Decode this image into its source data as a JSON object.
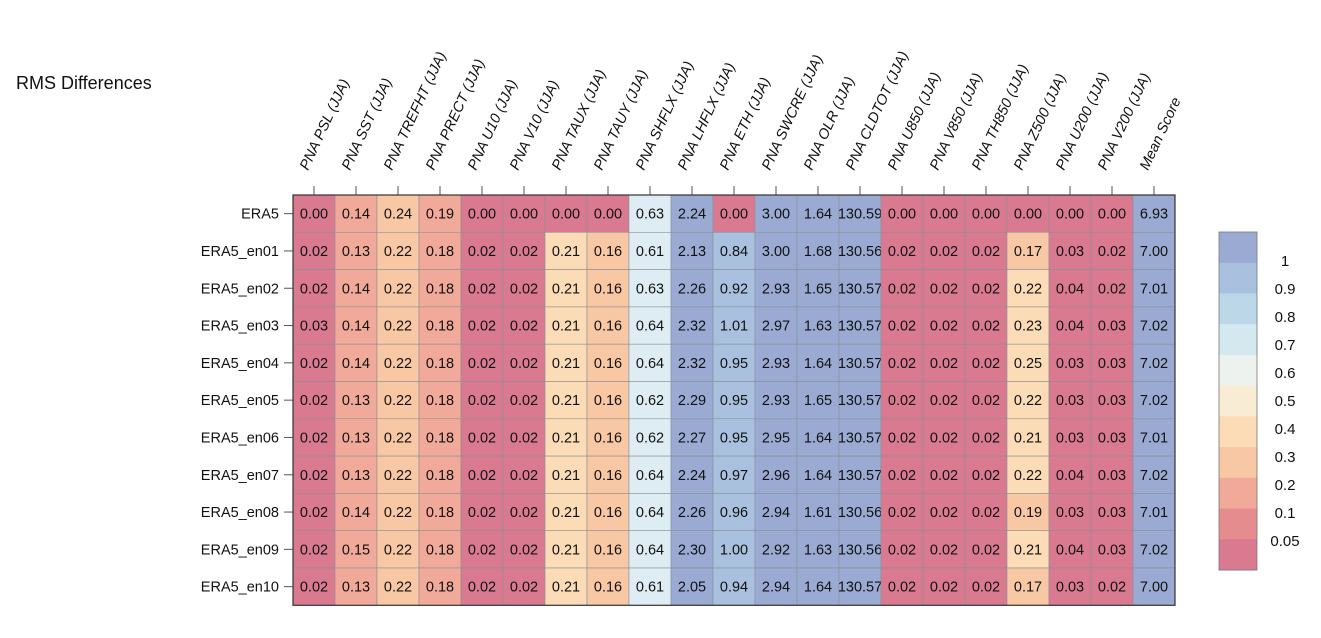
{
  "chart_data": {
    "type": "heatmap",
    "title": "RMS Differences",
    "columns": [
      "PNA PSL (JJA)",
      "PNA SST (JJA)",
      "PNA TREFHT (JJA)",
      "PNA PRECT (JJA)",
      "PNA U10 (JJA)",
      "PNA V10 (JJA)",
      "PNA TAUX (JJA)",
      "PNA TAUY (JJA)",
      "PNA SHFLX (JJA)",
      "PNA LHFLX (JJA)",
      "PNA ETH (JJA)",
      "PNA SWCRE (JJA)",
      "PNA OLR (JJA)",
      "PNA CLDTOT (JJA)",
      "PNA U850 (JJA)",
      "PNA V850 (JJA)",
      "PNA TH850 (JJA)",
      "PNA Z500 (JJA)",
      "PNA U200 (JJA)",
      "PNA V200 (JJA)",
      "Mean Score"
    ],
    "rows": [
      "ERA5",
      "ERA5_en01",
      "ERA5_en02",
      "ERA5_en03",
      "ERA5_en04",
      "ERA5_en05",
      "ERA5_en06",
      "ERA5_en07",
      "ERA5_en08",
      "ERA5_en09",
      "ERA5_en10"
    ],
    "values": [
      [
        "0.00",
        "0.14",
        "0.24",
        "0.19",
        "0.00",
        "0.00",
        "0.00",
        "0.00",
        "0.63",
        "2.24",
        "0.00",
        "3.00",
        "1.64",
        "130.59",
        "0.00",
        "0.00",
        "0.00",
        "0.00",
        "0.00",
        "0.00",
        "6.93"
      ],
      [
        "0.02",
        "0.13",
        "0.22",
        "0.18",
        "0.02",
        "0.02",
        "0.21",
        "0.16",
        "0.61",
        "2.13",
        "0.84",
        "3.00",
        "1.68",
        "130.56",
        "0.02",
        "0.02",
        "0.02",
        "0.17",
        "0.03",
        "0.02",
        "7.00"
      ],
      [
        "0.02",
        "0.14",
        "0.22",
        "0.18",
        "0.02",
        "0.02",
        "0.21",
        "0.16",
        "0.63",
        "2.26",
        "0.92",
        "2.93",
        "1.65",
        "130.57",
        "0.02",
        "0.02",
        "0.02",
        "0.22",
        "0.04",
        "0.02",
        "7.01"
      ],
      [
        "0.03",
        "0.14",
        "0.22",
        "0.18",
        "0.02",
        "0.02",
        "0.21",
        "0.16",
        "0.64",
        "2.32",
        "1.01",
        "2.97",
        "1.63",
        "130.57",
        "0.02",
        "0.02",
        "0.02",
        "0.23",
        "0.04",
        "0.03",
        "7.02"
      ],
      [
        "0.02",
        "0.14",
        "0.22",
        "0.18",
        "0.02",
        "0.02",
        "0.21",
        "0.16",
        "0.64",
        "2.32",
        "0.95",
        "2.93",
        "1.64",
        "130.57",
        "0.02",
        "0.02",
        "0.02",
        "0.25",
        "0.03",
        "0.03",
        "7.02"
      ],
      [
        "0.02",
        "0.13",
        "0.22",
        "0.18",
        "0.02",
        "0.02",
        "0.21",
        "0.16",
        "0.62",
        "2.29",
        "0.95",
        "2.93",
        "1.65",
        "130.57",
        "0.02",
        "0.02",
        "0.02",
        "0.22",
        "0.03",
        "0.03",
        "7.02"
      ],
      [
        "0.02",
        "0.13",
        "0.22",
        "0.18",
        "0.02",
        "0.02",
        "0.21",
        "0.16",
        "0.62",
        "2.27",
        "0.95",
        "2.95",
        "1.64",
        "130.57",
        "0.02",
        "0.02",
        "0.02",
        "0.21",
        "0.03",
        "0.03",
        "7.01"
      ],
      [
        "0.02",
        "0.13",
        "0.22",
        "0.18",
        "0.02",
        "0.02",
        "0.21",
        "0.16",
        "0.64",
        "2.24",
        "0.97",
        "2.96",
        "1.64",
        "130.57",
        "0.02",
        "0.02",
        "0.02",
        "0.22",
        "0.04",
        "0.03",
        "7.02"
      ],
      [
        "0.02",
        "0.14",
        "0.22",
        "0.18",
        "0.02",
        "0.02",
        "0.21",
        "0.16",
        "0.64",
        "2.26",
        "0.96",
        "2.94",
        "1.61",
        "130.56",
        "0.02",
        "0.02",
        "0.02",
        "0.19",
        "0.03",
        "0.03",
        "7.01"
      ],
      [
        "0.02",
        "0.15",
        "0.22",
        "0.18",
        "0.02",
        "0.02",
        "0.21",
        "0.16",
        "0.64",
        "2.30",
        "1.00",
        "2.92",
        "1.63",
        "130.56",
        "0.02",
        "0.02",
        "0.02",
        "0.21",
        "0.04",
        "0.03",
        "7.02"
      ],
      [
        "0.02",
        "0.13",
        "0.22",
        "0.18",
        "0.02",
        "0.02",
        "0.21",
        "0.16",
        "0.61",
        "2.05",
        "0.94",
        "2.94",
        "1.64",
        "130.57",
        "0.02",
        "0.02",
        "0.02",
        "0.17",
        "0.03",
        "0.02",
        "7.00"
      ]
    ],
    "legend": {
      "labels": [
        "1",
        "0.9",
        "0.8",
        "0.7",
        "0.6",
        "0.5",
        "0.4",
        "0.3",
        "0.2",
        "0.1",
        "0.05"
      ],
      "colors": [
        "#9aaad3",
        "#a9c1df",
        "#bcd7e8",
        "#d4e8f0",
        "#eef2ef",
        "#f8ecd4",
        "#fbdcb6",
        "#f8c7a4",
        "#f1aa99",
        "#e58c8e",
        "#d97a90"
      ]
    }
  }
}
